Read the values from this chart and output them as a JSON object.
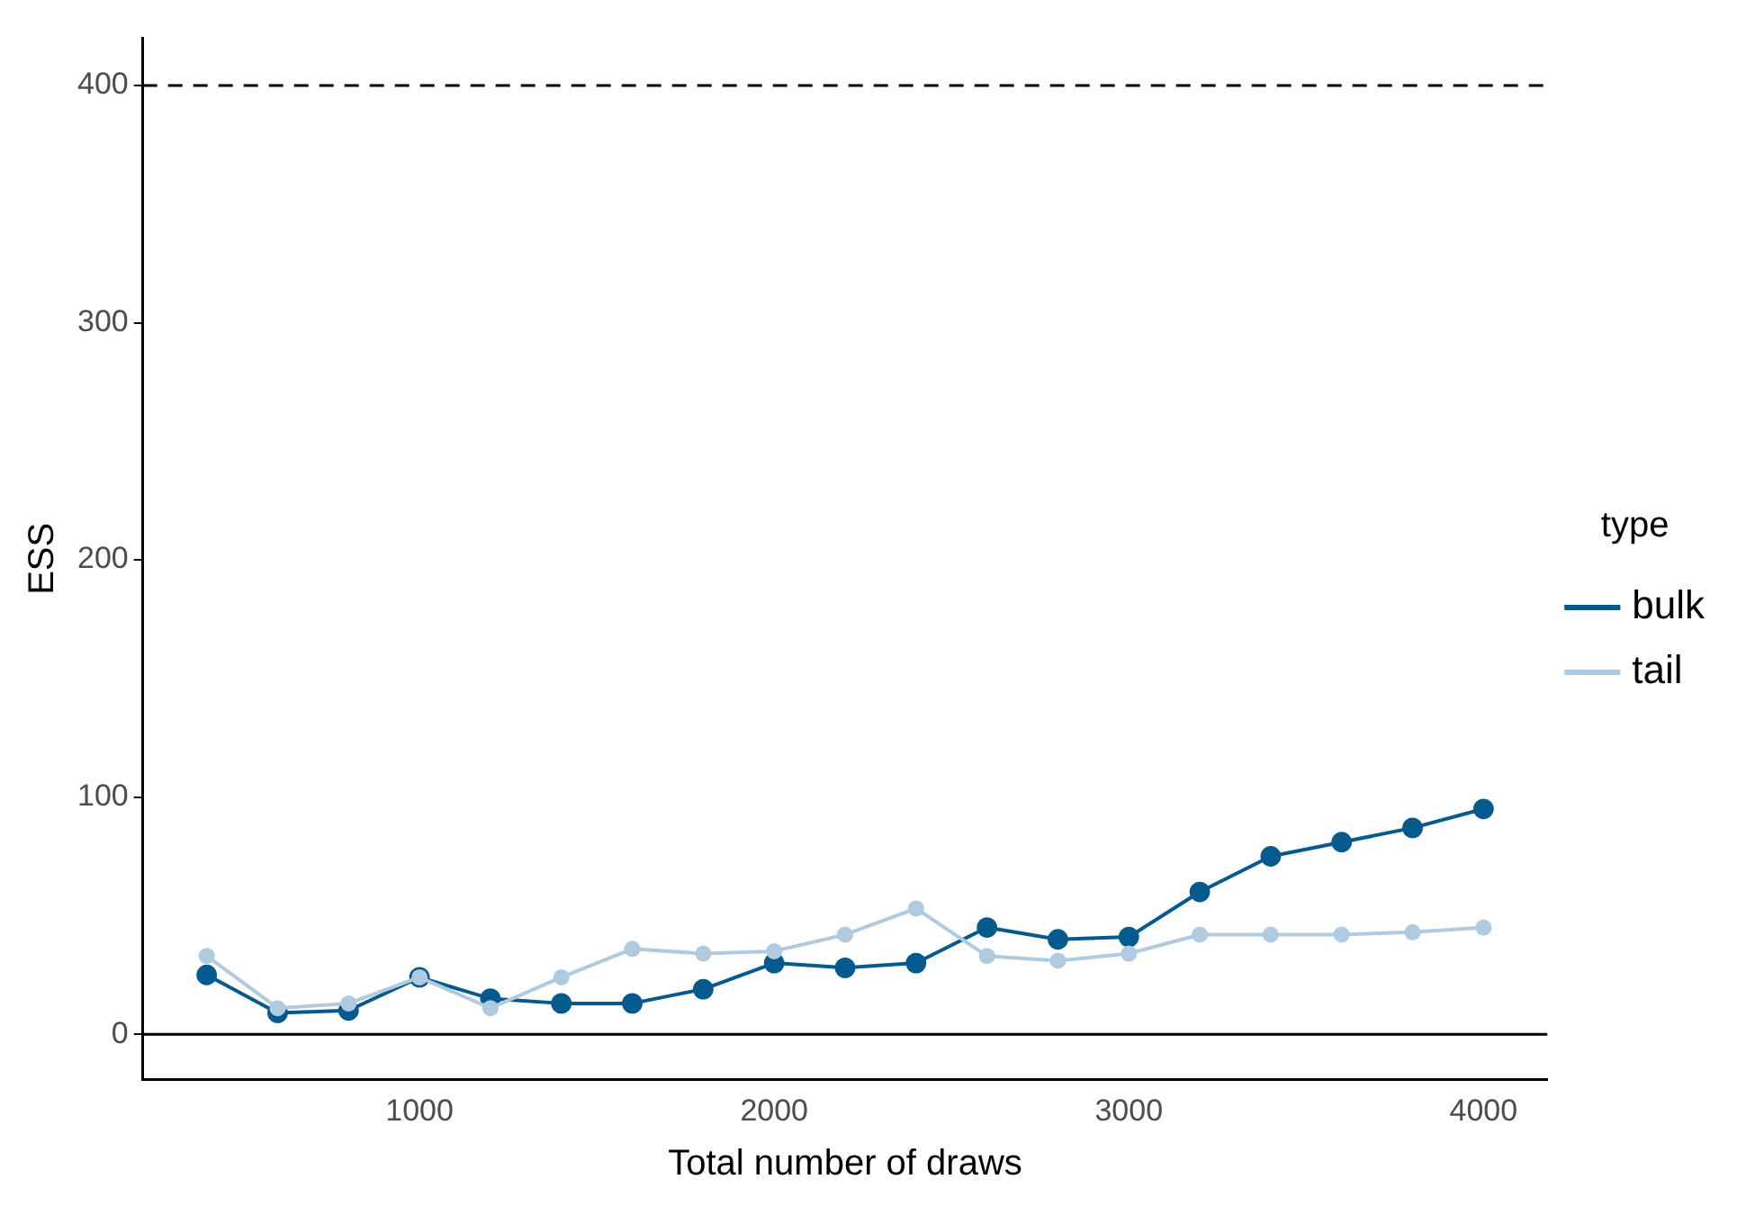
{
  "chart_data": {
    "type": "line",
    "xlabel": "Total number of draws",
    "ylabel": "ESS",
    "legend_title": "type",
    "x": [
      400,
      600,
      800,
      1000,
      1200,
      1400,
      1600,
      1800,
      2000,
      2200,
      2400,
      2600,
      2800,
      3000,
      3200,
      3400,
      3600,
      3800,
      4000
    ],
    "series": [
      {
        "name": "bulk",
        "color": "#045a8d",
        "values": [
          25,
          9,
          10,
          24,
          15,
          13,
          13,
          19,
          30,
          28,
          30,
          45,
          40,
          41,
          60,
          75,
          81,
          87,
          95
        ]
      },
      {
        "name": "tail",
        "color": "#b0cadf",
        "values": [
          33,
          11,
          13,
          24,
          11,
          24,
          36,
          34,
          35,
          42,
          53,
          33,
          31,
          34,
          42,
          42,
          42,
          43,
          45
        ]
      }
    ],
    "xlim": [
      220,
      4180
    ],
    "xticks": [
      1000,
      2000,
      3000,
      4000
    ],
    "ylim": [
      -19,
      420
    ],
    "yticks": [
      0,
      100,
      200,
      300,
      400
    ],
    "ref_lines": [
      {
        "axis": "y",
        "value": 400,
        "color": "#000000",
        "line_style": "dashed"
      },
      {
        "axis": "y",
        "value": 0,
        "color": "#000000",
        "line_style": "solid"
      }
    ],
    "grid": false,
    "legend": "right",
    "marker": "circle",
    "line_style": "solid"
  }
}
